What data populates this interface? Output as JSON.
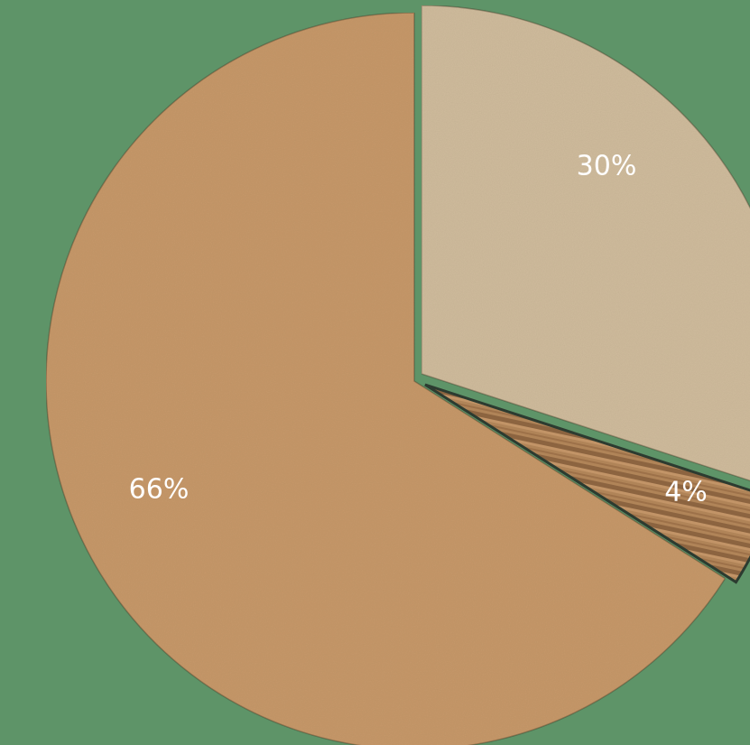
{
  "chart_data": {
    "type": "pie",
    "title": "",
    "start_angle_deg": -90,
    "direction": "clockwise",
    "background_color": "#5e9468",
    "slices": [
      {
        "label": "30%",
        "value": 30,
        "color": "#cfbb9c",
        "texture": "smooth-cardboard"
      },
      {
        "label": "4%",
        "value": 4,
        "color": "#a97c55",
        "texture": "corrugated-cardboard"
      },
      {
        "label": "66%",
        "value": 66,
        "color": "#c69869",
        "texture": "kraft-cardboard"
      }
    ]
  }
}
